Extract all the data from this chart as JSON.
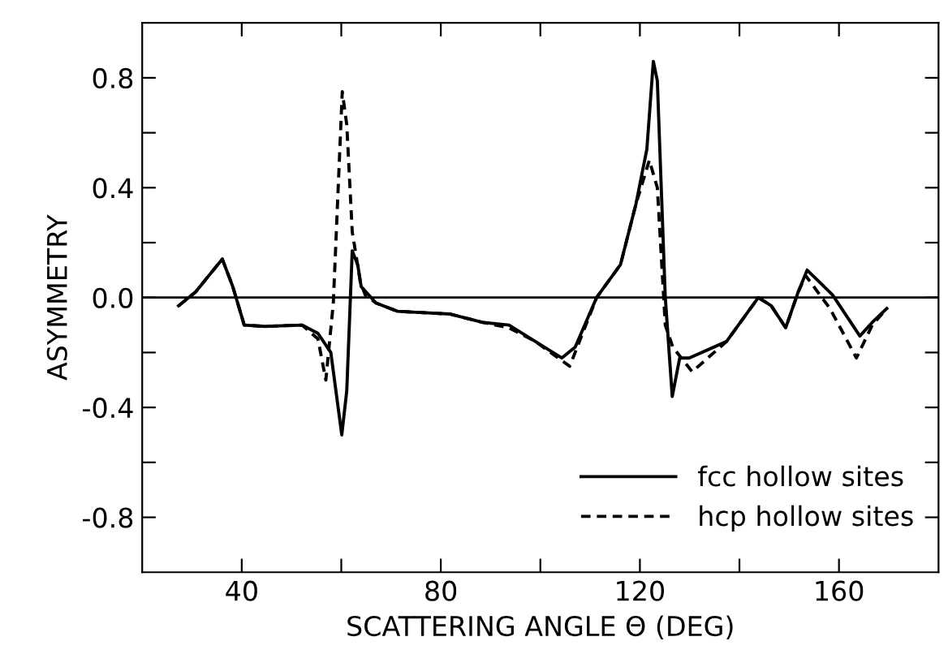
{
  "chart_data": {
    "type": "line",
    "xlabel": "SCATTERING ANGLE Θ (DEG)",
    "ylabel": "ASYMMETRY",
    "xlim": [
      20,
      180
    ],
    "ylim": [
      -1.0,
      1.0
    ],
    "xticks": [
      {
        "value": 40,
        "label": "40"
      },
      {
        "value": 60,
        "label": null
      },
      {
        "value": 80,
        "label": "80"
      },
      {
        "value": 100,
        "label": null
      },
      {
        "value": 120,
        "label": "120"
      },
      {
        "value": 140,
        "label": null
      },
      {
        "value": 160,
        "label": "160"
      }
    ],
    "yticks": [
      {
        "value": -0.8,
        "label": "-0.8"
      },
      {
        "value": -0.6,
        "label": null
      },
      {
        "value": -0.4,
        "label": "-0.4"
      },
      {
        "value": -0.2,
        "label": null
      },
      {
        "value": 0.0,
        "label": "0.0"
      },
      {
        "value": 0.2,
        "label": null
      },
      {
        "value": 0.4,
        "label": "0.4"
      },
      {
        "value": 0.6,
        "label": null
      },
      {
        "value": 0.8,
        "label": "0.8"
      }
    ],
    "ref_lines": [
      {
        "axis": "y",
        "value": 0,
        "color": "#000000"
      }
    ],
    "legend": "bottom right",
    "grid": false,
    "marker": "none",
    "series": [
      {
        "name": "fcc hollow sites",
        "color": "#000000",
        "line_style": "solid",
        "x": [
          27.3,
          30.7,
          36.1,
          38.2,
          40.5,
          44.6,
          52.1,
          55.3,
          57.9,
          60.1,
          61.1,
          62.2,
          63.3,
          64.0,
          67.0,
          71.3,
          81.9,
          88.3,
          93.7,
          99.0,
          104.3,
          107.0,
          111.3,
          116.1,
          119.2,
          121.4,
          122.7,
          123.5,
          125.1,
          126.5,
          128.0,
          129.9,
          137.4,
          143.8,
          146.4,
          149.3,
          151.8,
          153.6,
          158.7,
          164.2,
          166.7,
          169.6
        ],
        "values": [
          -0.03,
          0.02,
          0.14,
          0.04,
          -0.1,
          -0.105,
          -0.1,
          -0.13,
          -0.2,
          -0.5,
          -0.34,
          0.17,
          0.12,
          0.04,
          -0.02,
          -0.05,
          -0.06,
          -0.09,
          -0.1,
          -0.16,
          -0.22,
          -0.18,
          0.0,
          0.12,
          0.34,
          0.54,
          0.86,
          0.79,
          0.0,
          -0.36,
          -0.22,
          -0.22,
          -0.16,
          0.0,
          -0.03,
          -0.11,
          0.02,
          0.1,
          0.01,
          -0.14,
          -0.09,
          -0.04
        ]
      },
      {
        "name": "hcp hollow sites",
        "color": "#000000",
        "line_style": "dashed",
        "x": [
          27.3,
          30.7,
          36.1,
          38.2,
          40.5,
          44.6,
          52.1,
          55.3,
          56.9,
          58.4,
          60.2,
          61.1,
          62.2,
          63.8,
          64.8,
          67.0,
          71.3,
          81.9,
          88.3,
          93.7,
          99.0,
          105.9,
          111.3,
          116.1,
          119.2,
          121.9,
          123.5,
          125.1,
          126.6,
          130.5,
          137.4,
          143.8,
          146.4,
          149.3,
          151.8,
          153.3,
          158.2,
          163.5,
          166.7,
          169.6
        ],
        "values": [
          -0.03,
          0.02,
          0.14,
          0.04,
          -0.1,
          -0.105,
          -0.1,
          -0.15,
          -0.3,
          -0.02,
          0.75,
          0.63,
          0.24,
          0.06,
          0.01,
          -0.02,
          -0.05,
          -0.06,
          -0.09,
          -0.11,
          -0.16,
          -0.25,
          0.0,
          0.12,
          0.34,
          0.5,
          0.4,
          -0.1,
          -0.18,
          -0.27,
          -0.16,
          0.0,
          -0.03,
          -0.11,
          0.02,
          0.08,
          -0.04,
          -0.22,
          -0.1,
          -0.04
        ]
      }
    ]
  }
}
